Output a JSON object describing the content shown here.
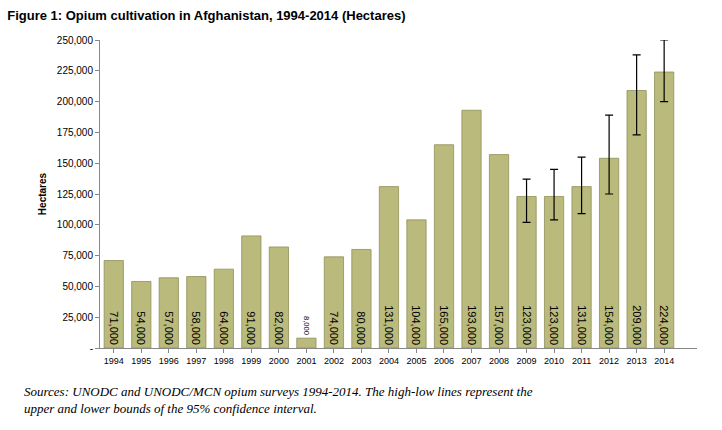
{
  "chart_data": {
    "type": "bar",
    "title": "Figure 1: Opium cultivation in Afghanistan, 1994-2014 (Hectares)",
    "y_label": "Hectares",
    "categories": [
      "1994",
      "1995",
      "1996",
      "1997",
      "1998",
      "1999",
      "2000",
      "2001",
      "2002",
      "2003",
      "2004",
      "2005",
      "2006",
      "2007",
      "2008",
      "2009",
      "2010",
      "2011",
      "2012",
      "2013",
      "2014"
    ],
    "values": [
      71000,
      54000,
      57000,
      58000,
      64000,
      91000,
      82000,
      8000,
      74000,
      80000,
      131000,
      104000,
      165000,
      193000,
      157000,
      123000,
      123000,
      131000,
      154000,
      209000,
      224000
    ],
    "value_labels": [
      "71,000",
      "54,000",
      "57,000",
      "58,000",
      "64,000",
      "91,000",
      "82,000",
      "8,000",
      "74,000",
      "80,000",
      "131,000",
      "104,000",
      "165,000",
      "193,000",
      "157,000",
      "123,000",
      "123,000",
      "131,000",
      "154,000",
      "209,000",
      "224,000"
    ],
    "ci_lower": [
      null,
      null,
      null,
      null,
      null,
      null,
      null,
      null,
      null,
      null,
      null,
      null,
      null,
      null,
      null,
      102000,
      104000,
      109000,
      125000,
      173000,
      200000
    ],
    "ci_upper": [
      null,
      null,
      null,
      null,
      null,
      null,
      null,
      null,
      null,
      null,
      null,
      null,
      null,
      null,
      null,
      137000,
      145000,
      155000,
      189000,
      238000,
      250000
    ],
    "color": "#b9ba7c",
    "data_labels": true,
    "grid": false,
    "ylim": [
      0,
      250000
    ],
    "yticks": [
      {
        "value": 0,
        "label": "-"
      },
      {
        "value": 25000,
        "label": "25,000"
      },
      {
        "value": 50000,
        "label": "50,000"
      },
      {
        "value": 75000,
        "label": "75,000"
      },
      {
        "value": 100000,
        "label": "100,000"
      },
      {
        "value": 125000,
        "label": "125,000"
      },
      {
        "value": 150000,
        "label": "150,000"
      },
      {
        "value": 175000,
        "label": "175,000"
      },
      {
        "value": 200000,
        "label": "200,000"
      },
      {
        "value": 225000,
        "label": "225,000"
      },
      {
        "value": 250000,
        "label": "250,000"
      }
    ],
    "annotations": [
      "Sources: UNODC and UNODC/MCN opium surveys 1994-2014. The high-low lines represent the",
      "upper and lower bounds of the 95% confidence interval."
    ]
  }
}
